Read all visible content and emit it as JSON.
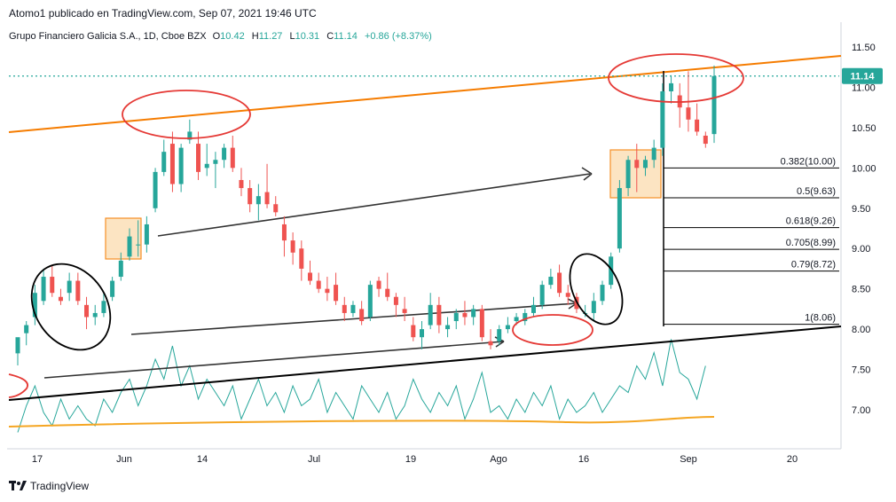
{
  "header": {
    "published": "Atomo1 publicado en TradingView.com, Sep 07, 2021 19:46 UTC",
    "symbol": "Grupo Financiero Galicia S.A., 1D, Cboe BZX",
    "open_label": "O",
    "open": "10.42",
    "high_label": "H",
    "high": "11.27",
    "low_label": "L",
    "low": "10.31",
    "close_label": "C",
    "close": "11.14",
    "change": "+0.86 (+8.37%)"
  },
  "footer": {
    "brand": "TradingView"
  },
  "colors": {
    "up": "#26a69a",
    "down": "#ef5350",
    "trend": "#f57c00",
    "fib": "#000000",
    "ellipse_red": "#e53935",
    "ellipse_black": "#000000",
    "ma": "#f5a623",
    "osc": "#26a69a"
  },
  "chart_data": {
    "type": "candlestick",
    "y_axis": {
      "ticks": [
        "11.50",
        "11.00",
        "10.50",
        "10.00",
        "9.50",
        "9.00",
        "8.50",
        "8.00",
        "7.50",
        "7.00"
      ],
      "tick_values": [
        11.5,
        11.0,
        10.5,
        10.0,
        9.5,
        9.0,
        8.5,
        8.0,
        7.5,
        7.0
      ],
      "range": [
        6.55,
        11.9
      ]
    },
    "x_axis": {
      "ticks": [
        "17",
        "Jun",
        "14",
        "Jul",
        "19",
        "Ago",
        "16",
        "Sep",
        "20"
      ]
    },
    "last_price": "11.14",
    "candles": [
      {
        "o": 7.7,
        "h": 7.85,
        "l": 7.55,
        "c": 7.9
      },
      {
        "o": 7.95,
        "h": 8.1,
        "l": 7.8,
        "c": 8.05
      },
      {
        "o": 8.15,
        "h": 8.55,
        "l": 8.05,
        "c": 8.45
      },
      {
        "o": 8.35,
        "h": 8.75,
        "l": 8.3,
        "c": 8.65
      },
      {
        "o": 8.65,
        "h": 8.8,
        "l": 8.4,
        "c": 8.45
      },
      {
        "o": 8.4,
        "h": 8.5,
        "l": 8.3,
        "c": 8.35
      },
      {
        "o": 8.45,
        "h": 8.7,
        "l": 8.35,
        "c": 8.6
      },
      {
        "o": 8.6,
        "h": 8.7,
        "l": 8.3,
        "c": 8.35
      },
      {
        "o": 8.3,
        "h": 8.4,
        "l": 8.0,
        "c": 8.15
      },
      {
        "o": 8.15,
        "h": 8.3,
        "l": 8.05,
        "c": 8.2
      },
      {
        "o": 8.2,
        "h": 8.45,
        "l": 8.15,
        "c": 8.35
      },
      {
        "o": 8.4,
        "h": 8.65,
        "l": 8.35,
        "c": 8.6
      },
      {
        "o": 8.65,
        "h": 8.95,
        "l": 8.6,
        "c": 8.85
      },
      {
        "o": 8.9,
        "h": 9.25,
        "l": 8.85,
        "c": 9.15
      },
      {
        "o": 9.05,
        "h": 9.35,
        "l": 8.9,
        "c": 9.05
      },
      {
        "o": 9.05,
        "h": 9.4,
        "l": 8.95,
        "c": 9.3
      },
      {
        "o": 9.5,
        "h": 10.0,
        "l": 9.45,
        "c": 9.95
      },
      {
        "o": 9.95,
        "h": 10.35,
        "l": 9.9,
        "c": 10.2
      },
      {
        "o": 10.3,
        "h": 10.45,
        "l": 9.7,
        "c": 9.8
      },
      {
        "o": 9.8,
        "h": 10.3,
        "l": 9.7,
        "c": 10.25
      },
      {
        "o": 10.35,
        "h": 10.6,
        "l": 10.3,
        "c": 10.45
      },
      {
        "o": 10.3,
        "h": 10.45,
        "l": 9.85,
        "c": 9.95
      },
      {
        "o": 10.0,
        "h": 10.3,
        "l": 9.9,
        "c": 10.05
      },
      {
        "o": 10.05,
        "h": 10.2,
        "l": 9.75,
        "c": 10.1
      },
      {
        "o": 10.1,
        "h": 10.3,
        "l": 10.0,
        "c": 10.25
      },
      {
        "o": 10.25,
        "h": 10.4,
        "l": 9.95,
        "c": 10.0
      },
      {
        "o": 9.85,
        "h": 10.0,
        "l": 9.65,
        "c": 9.75
      },
      {
        "o": 9.75,
        "h": 9.85,
        "l": 9.45,
        "c": 9.55
      },
      {
        "o": 9.55,
        "h": 9.8,
        "l": 9.35,
        "c": 9.65
      },
      {
        "o": 9.7,
        "h": 10.05,
        "l": 9.5,
        "c": 9.55
      },
      {
        "o": 9.55,
        "h": 9.65,
        "l": 9.4,
        "c": 9.45
      },
      {
        "o": 9.3,
        "h": 9.4,
        "l": 8.9,
        "c": 9.1
      },
      {
        "o": 9.1,
        "h": 9.2,
        "l": 8.8,
        "c": 8.95
      },
      {
        "o": 9.0,
        "h": 9.1,
        "l": 8.6,
        "c": 8.75
      },
      {
        "o": 8.7,
        "h": 8.85,
        "l": 8.55,
        "c": 8.6
      },
      {
        "o": 8.6,
        "h": 8.7,
        "l": 8.45,
        "c": 8.5
      },
      {
        "o": 8.5,
        "h": 8.65,
        "l": 8.35,
        "c": 8.45
      },
      {
        "o": 8.55,
        "h": 8.7,
        "l": 8.3,
        "c": 8.35
      },
      {
        "o": 8.3,
        "h": 8.4,
        "l": 8.1,
        "c": 8.2
      },
      {
        "o": 8.2,
        "h": 8.35,
        "l": 8.15,
        "c": 8.3
      },
      {
        "o": 8.25,
        "h": 8.35,
        "l": 8.05,
        "c": 8.1
      },
      {
        "o": 8.15,
        "h": 8.6,
        "l": 8.1,
        "c": 8.55
      },
      {
        "o": 8.6,
        "h": 8.65,
        "l": 8.4,
        "c": 8.5
      },
      {
        "o": 8.5,
        "h": 8.7,
        "l": 8.35,
        "c": 8.4
      },
      {
        "o": 8.4,
        "h": 8.45,
        "l": 8.15,
        "c": 8.3
      },
      {
        "o": 8.25,
        "h": 8.4,
        "l": 8.1,
        "c": 8.2
      },
      {
        "o": 8.05,
        "h": 8.15,
        "l": 7.85,
        "c": 7.9
      },
      {
        "o": 7.9,
        "h": 8.1,
        "l": 7.75,
        "c": 8.0
      },
      {
        "o": 8.05,
        "h": 8.45,
        "l": 8.0,
        "c": 8.3
      },
      {
        "o": 8.3,
        "h": 8.4,
        "l": 7.95,
        "c": 8.05
      },
      {
        "o": 8.0,
        "h": 8.15,
        "l": 7.9,
        "c": 8.05
      },
      {
        "o": 8.1,
        "h": 8.25,
        "l": 8.0,
        "c": 8.2
      },
      {
        "o": 8.2,
        "h": 8.35,
        "l": 8.05,
        "c": 8.15
      },
      {
        "o": 8.15,
        "h": 8.3,
        "l": 8.05,
        "c": 8.25
      },
      {
        "o": 8.25,
        "h": 8.3,
        "l": 7.85,
        "c": 7.9
      },
      {
        "o": 7.85,
        "h": 8.0,
        "l": 7.75,
        "c": 7.8
      },
      {
        "o": 7.85,
        "h": 8.05,
        "l": 7.8,
        "c": 8.0
      },
      {
        "o": 8.0,
        "h": 8.15,
        "l": 7.95,
        "c": 8.05
      },
      {
        "o": 8.1,
        "h": 8.2,
        "l": 8.05,
        "c": 8.15
      },
      {
        "o": 8.1,
        "h": 8.25,
        "l": 8.05,
        "c": 8.2
      },
      {
        "o": 8.2,
        "h": 8.4,
        "l": 8.15,
        "c": 8.3
      },
      {
        "o": 8.3,
        "h": 8.6,
        "l": 8.25,
        "c": 8.55
      },
      {
        "o": 8.55,
        "h": 8.75,
        "l": 8.5,
        "c": 8.65
      },
      {
        "o": 8.7,
        "h": 8.8,
        "l": 8.4,
        "c": 8.45
      },
      {
        "o": 8.45,
        "h": 8.55,
        "l": 8.3,
        "c": 8.4
      },
      {
        "o": 8.4,
        "h": 8.45,
        "l": 8.2,
        "c": 8.25
      },
      {
        "o": 8.2,
        "h": 8.3,
        "l": 8.15,
        "c": 8.2
      },
      {
        "o": 8.2,
        "h": 8.45,
        "l": 8.1,
        "c": 8.35
      },
      {
        "o": 8.35,
        "h": 8.6,
        "l": 8.3,
        "c": 8.55
      },
      {
        "o": 8.55,
        "h": 8.95,
        "l": 8.5,
        "c": 8.9
      },
      {
        "o": 9.0,
        "h": 9.85,
        "l": 8.95,
        "c": 9.75
      },
      {
        "o": 9.75,
        "h": 10.15,
        "l": 9.65,
        "c": 10.1
      },
      {
        "o": 10.1,
        "h": 10.3,
        "l": 9.7,
        "c": 10.0
      },
      {
        "o": 10.0,
        "h": 10.15,
        "l": 9.9,
        "c": 10.1
      },
      {
        "o": 10.1,
        "h": 10.35,
        "l": 10.0,
        "c": 10.25
      },
      {
        "o": 10.25,
        "h": 11.05,
        "l": 10.15,
        "c": 10.95
      },
      {
        "o": 10.95,
        "h": 11.15,
        "l": 10.8,
        "c": 11.05
      },
      {
        "o": 10.9,
        "h": 11.05,
        "l": 10.5,
        "c": 10.75
      },
      {
        "o": 10.75,
        "h": 11.2,
        "l": 10.45,
        "c": 10.6
      },
      {
        "o": 10.6,
        "h": 10.8,
        "l": 10.4,
        "c": 10.45
      },
      {
        "o": 10.4,
        "h": 10.45,
        "l": 10.25,
        "c": 10.3
      },
      {
        "o": 10.42,
        "h": 11.27,
        "l": 10.31,
        "c": 11.14
      }
    ],
    "fibonacci": [
      {
        "label": "1(8.06)",
        "value": 8.06
      },
      {
        "label": "0.79(8.72)",
        "value": 8.72
      },
      {
        "label": "0.705(8.99)",
        "value": 8.99
      },
      {
        "label": "0.618(9.26)",
        "value": 9.26
      },
      {
        "label": "0.5(9.63)",
        "value": 9.63
      },
      {
        "label": "0.382(10.00)",
        "value": 10.0
      }
    ]
  }
}
